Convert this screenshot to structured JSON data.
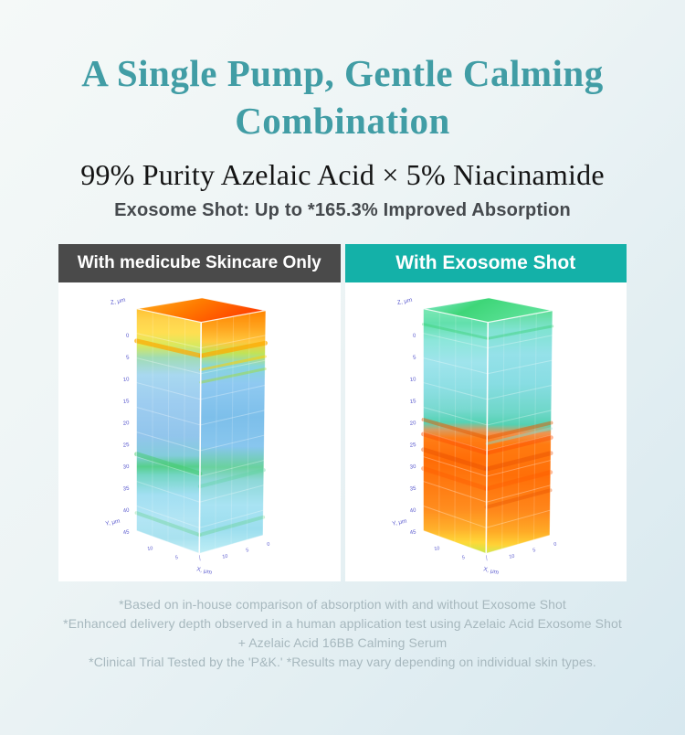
{
  "page": {
    "title_line1": "A Single Pump, Gentle Calming",
    "title_line2": "Combination",
    "subtitle": "99% Purity Azelaic Acid × 5% Niacinamide",
    "tagline": "Exosome Shot: Up to *165.3% Improved Absorption"
  },
  "panels": [
    {
      "header": "With medicube Skincare Only",
      "header_bg": "#4a4a4a"
    },
    {
      "header": "With Exosome Shot",
      "header_bg": "#14b1a8"
    }
  ],
  "footnotes": [
    "*Based on in-house comparison of absorption with and without Exosome Shot",
    "*Enhanced delivery depth observed in a human application test using Azelaic Acid Exosome Shot",
    "+ Azelaic Acid 16BB Calming Serum",
    "*Clinical Trial Tested by the 'P&K.' *Results may vary depending on individual skin types."
  ],
  "colors": {
    "title_teal": "#419da5",
    "header_dark": "#4a4a4a",
    "header_teal": "#14b1a8",
    "footnote_gray": "#a7b8be",
    "axis_label_purple": "#5c5ccf",
    "background_top": "#f5f9f8",
    "background_bottom": "#d7e8ef"
  },
  "chart_data": [
    {
      "type": "heatmap",
      "title": "With medicube Skincare Only",
      "description": "3D skin-absorption volume: fluorescence concentrated at the surface (0–5 μm), weak blue signal deeper",
      "zlabel": "Z, μm",
      "ylabel": "Y, μm",
      "xlabel": "X, μm",
      "depth_ticks": [
        "0",
        "5",
        "10",
        "15",
        "20",
        "25",
        "30",
        "35",
        "40",
        "45"
      ],
      "depth_range_um": [
        0,
        45
      ],
      "bottom_ticks_left": [
        "10",
        "5"
      ],
      "bottom_ticks_right": [
        "10",
        "5",
        "0"
      ],
      "depth_zones": [
        {
          "depth_um": "0-5",
          "signal": "high (orange/red)"
        },
        {
          "depth_um": "5-9",
          "signal": "moderate (yellow-green)"
        },
        {
          "depth_um": "9-45",
          "signal": "low (pale blue/cyan with faint green patches)"
        }
      ],
      "faces": {
        "top": [
          [
            0,
            "#ffb121"
          ],
          [
            0.5,
            "#ff7a00"
          ],
          [
            1,
            "#ff4200"
          ]
        ],
        "left": [
          [
            0,
            "#ffc133"
          ],
          [
            0.05,
            "#ffd44d"
          ],
          [
            0.1,
            "#ffdf52"
          ],
          [
            0.15,
            "#d8e95e"
          ],
          [
            0.2,
            "#a0dcb4"
          ],
          [
            0.27,
            "#a8d8f0"
          ],
          [
            0.38,
            "#9ecdf0"
          ],
          [
            0.52,
            "#92c5ec"
          ],
          [
            0.6,
            "#84ccdc"
          ],
          [
            0.645,
            "#56cf8c"
          ],
          [
            0.68,
            "#74d6c4"
          ],
          [
            0.76,
            "#a2dff2"
          ],
          [
            0.86,
            "#b2e5f4"
          ],
          [
            0.94,
            "#a9e2ef"
          ],
          [
            1,
            "#c6eff7"
          ]
        ],
        "right": [
          [
            0,
            "#ff8400"
          ],
          [
            0.07,
            "#ffa41e"
          ],
          [
            0.13,
            "#ffc83e"
          ],
          [
            0.175,
            "#c2e356"
          ],
          [
            0.23,
            "#86d6dc"
          ],
          [
            0.3,
            "#8fc9f1"
          ],
          [
            0.44,
            "#7dbfea"
          ],
          [
            0.56,
            "#88c6ee"
          ],
          [
            0.645,
            "#6ad19e"
          ],
          [
            0.7,
            "#8ed8d8"
          ],
          [
            0.8,
            "#a9e3f3"
          ],
          [
            0.9,
            "#9cdeee"
          ],
          [
            1,
            "#bfeef6"
          ]
        ]
      },
      "streaks": [
        {
          "t": 0.145,
          "face": "both",
          "color": "#ffaa00",
          "width": 5,
          "opacity": 0.7
        },
        {
          "t": 0.205,
          "face": "R",
          "color": "#ffd000",
          "width": 3,
          "opacity": 0.55
        },
        {
          "t": 0.26,
          "face": "R",
          "color": "#9fdc3f",
          "width": 3,
          "opacity": 0.5
        },
        {
          "t": 0.655,
          "face": "L",
          "color": "#46cc6e",
          "width": 5,
          "opacity": 0.5
        },
        {
          "t": 0.71,
          "face": "R",
          "color": "#5fd4a0",
          "width": 4,
          "opacity": 0.38
        },
        {
          "t": 0.92,
          "face": "both",
          "color": "#55d075",
          "width": 4,
          "opacity": 0.3
        }
      ]
    },
    {
      "type": "heatmap",
      "title": "With Exosome Shot",
      "description": "3D skin-absorption volume: strong fluorescence delivered deep (≈22–43 μm), green/cyan near surface",
      "zlabel": "Z, μm",
      "ylabel": "Y, μm",
      "xlabel": "X, μm",
      "depth_ticks": [
        "0",
        "5",
        "10",
        "15",
        "20",
        "25",
        "30",
        "35",
        "40",
        "45"
      ],
      "depth_range_um": [
        0,
        45
      ],
      "bottom_ticks_left": [
        "10",
        "5"
      ],
      "bottom_ticks_right": [
        "10",
        "5",
        "0"
      ],
      "depth_zones": [
        {
          "depth_um": "0-3",
          "signal": "moderate (green)"
        },
        {
          "depth_um": "3-21",
          "signal": "low-moderate (cyan/teal)"
        },
        {
          "depth_um": "21-42",
          "signal": "high (orange/red)"
        },
        {
          "depth_um": "42-45",
          "signal": "moderate (yellow-green)"
        }
      ],
      "faces": {
        "top": [
          [
            0,
            "#86ead2"
          ],
          [
            0.45,
            "#3ed678"
          ],
          [
            1,
            "#5ee29a"
          ]
        ],
        "left": [
          [
            0,
            "#7be8b4"
          ],
          [
            0.06,
            "#62e0ac"
          ],
          [
            0.13,
            "#8ce6da"
          ],
          [
            0.22,
            "#9fe4ec"
          ],
          [
            0.32,
            "#8edfe4"
          ],
          [
            0.41,
            "#79d9d0"
          ],
          [
            0.465,
            "#55d2b4"
          ],
          [
            0.495,
            "#d89c60"
          ],
          [
            0.53,
            "#ff7d16"
          ],
          [
            0.62,
            "#ff6c06"
          ],
          [
            0.72,
            "#ff7b12"
          ],
          [
            0.82,
            "#ff8d1e"
          ],
          [
            0.9,
            "#ffb02b"
          ],
          [
            0.955,
            "#ffd838"
          ],
          [
            1,
            "#c9e94c"
          ]
        ],
        "right": [
          [
            0,
            "#5fdd97"
          ],
          [
            0.08,
            "#80e3d2"
          ],
          [
            0.18,
            "#95e1e9"
          ],
          [
            0.3,
            "#88dde3"
          ],
          [
            0.42,
            "#6ed7c8"
          ],
          [
            0.47,
            "#54d1b2"
          ],
          [
            0.505,
            "#ef9350"
          ],
          [
            0.55,
            "#ff7b10"
          ],
          [
            0.68,
            "#ff6f08"
          ],
          [
            0.82,
            "#ff861a"
          ],
          [
            0.91,
            "#ffaa26"
          ],
          [
            0.965,
            "#ffd236"
          ],
          [
            1,
            "#d2ea55"
          ]
        ]
      },
      "streaks": [
        {
          "t": 0.07,
          "face": "both",
          "color": "#34d06e",
          "width": 3,
          "opacity": 0.4
        },
        {
          "t": 0.5,
          "face": "both",
          "color": "#e85a00",
          "width": 4,
          "opacity": 0.5
        },
        {
          "t": 0.565,
          "face": "both",
          "color": "#ff4e00",
          "width": 5,
          "opacity": 0.45
        },
        {
          "t": 0.635,
          "face": "both",
          "color": "#e84c00",
          "width": 5,
          "opacity": 0.4
        },
        {
          "t": 0.72,
          "face": "both",
          "color": "#ff5a00",
          "width": 5,
          "opacity": 0.4
        },
        {
          "t": 0.8,
          "face": "R",
          "color": "#e85000",
          "width": 4,
          "opacity": 0.38
        },
        {
          "t": 0.525,
          "face": "R",
          "color": "#7fe0d8",
          "width": 3,
          "opacity": 0.45
        }
      ]
    }
  ]
}
